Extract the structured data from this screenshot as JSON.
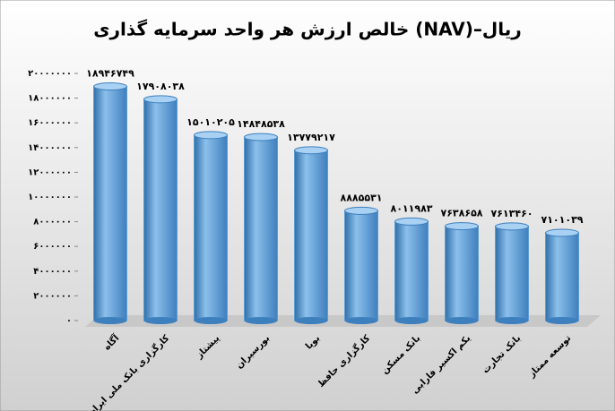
{
  "chart_data": {
    "type": "bar",
    "title": "خالص ارزش هر واحد سرمایه گذاری (NAV)–ریال",
    "categories": [
      "آگاه",
      "کارگزاری بانک ملی ایران",
      "پیشتاز",
      "بورسیران",
      "بویا",
      "کارگزاری حافظ",
      "بانک مسکن",
      "یکم اکسیر فارابی",
      "بانک تجارت",
      "توسعه ممتاز"
    ],
    "values": [
      18946749,
      17908038,
      15010205,
      14848538,
      13779217,
      8885531,
      8011983,
      7638658,
      7613460,
      7101039
    ],
    "value_labels": [
      "۱۸۹۴۶۷۴۹",
      "۱۷۹۰۸۰۳۸",
      "۱۵۰۱۰۲۰۵",
      "۱۴۸۴۸۵۳۸",
      "۱۳۷۷۹۲۱۷",
      "۸۸۸۵۵۳۱",
      "۸۰۱۱۹۸۳",
      "۷۶۳۸۶۵۸",
      "۷۶۱۳۴۶۰",
      "۷۱۰۱۰۳۹"
    ],
    "color": "#5b9bd5",
    "ylim": [
      0,
      20000000
    ],
    "yticks": [
      {
        "value": 0,
        "label": "۰"
      },
      {
        "value": 2000000,
        "label": "۲۰۰۰۰۰۰"
      },
      {
        "value": 4000000,
        "label": "۴۰۰۰۰۰۰"
      },
      {
        "value": 6000000,
        "label": "۶۰۰۰۰۰۰"
      },
      {
        "value": 8000000,
        "label": "۸۰۰۰۰۰۰"
      },
      {
        "value": 10000000,
        "label": "۱۰۰۰۰۰۰۰"
      },
      {
        "value": 12000000,
        "label": "۱۲۰۰۰۰۰۰"
      },
      {
        "value": 14000000,
        "label": "۱۴۰۰۰۰۰۰"
      },
      {
        "value": 16000000,
        "label": "۱۶۰۰۰۰۰۰"
      },
      {
        "value": 18000000,
        "label": "۱۸۰۰۰۰۰۰"
      },
      {
        "value": 20000000,
        "label": "۲۰۰۰۰۰۰۰"
      }
    ],
    "grid": false
  }
}
